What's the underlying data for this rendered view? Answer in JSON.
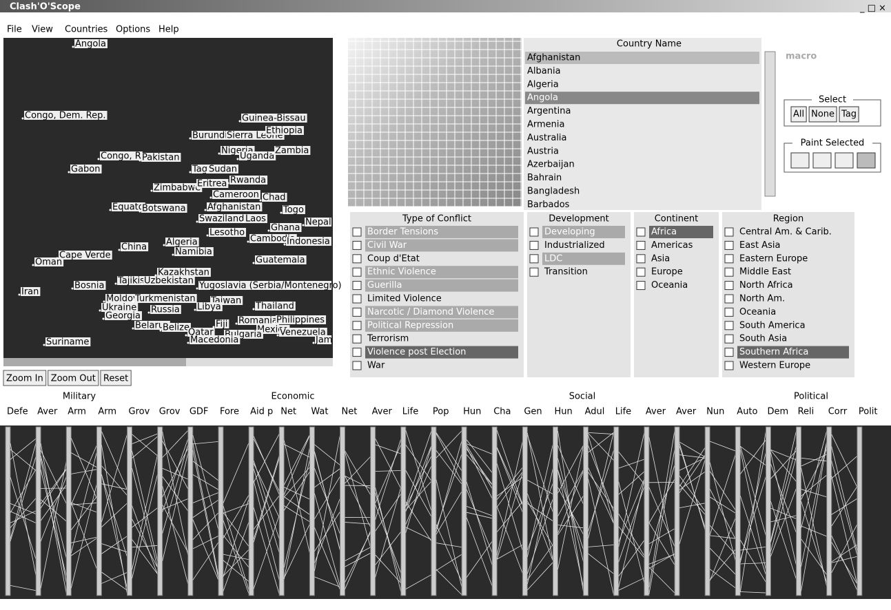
{
  "window": {
    "title": "Clash'O'Scope"
  },
  "menu": [
    "File",
    "View",
    "Countries",
    "Options",
    "Help"
  ],
  "map": {
    "labels": [
      "Angola",
      "Congo, Dem. Rep.",
      "Guinea-Bissau",
      "Burundi",
      "Sierra Leone",
      "Ethiopia",
      "Congo, R",
      "Pakistan",
      "Nigeria",
      "Uganda",
      "Zambia",
      "Gabon",
      "Tag",
      "Sudan",
      "Zimbabwe",
      "Eritrea",
      "Rwanda",
      "Cameroon",
      "Chad",
      "Equato",
      "Botswana",
      "Afghanistan",
      "Togo",
      "Swaziland",
      "Laos",
      "Ghana",
      "Nepal",
      "Lesotho",
      "Cambodia",
      "Indonesia",
      "China",
      "Algeria",
      "Namibia",
      "Oman",
      "Cape Verde",
      "Guatemala",
      "Kazakhstan",
      "Tajikistan",
      "Uzbekistan",
      "Bosnia",
      "Yugoslavia (Serbia/Montenegro)",
      "Iran",
      "Moldova",
      "Turkmenistan",
      "Taiwan",
      "Ukraine",
      "Russia",
      "Libya",
      "Thailand",
      "Georgia",
      "Romania",
      "Philippines",
      "Belarus",
      "Belize",
      "Qatar",
      "Fiji",
      "Mexico",
      "Venezuela",
      "Bulgaria",
      "Macedonia",
      "Suriname",
      "Jam"
    ]
  },
  "zoom": [
    "Zoom In",
    "Zoom Out",
    "Reset"
  ],
  "country_list": {
    "header": "Country Name",
    "items": [
      {
        "label": "Afghanistan",
        "highlight": "light"
      },
      {
        "label": "Albania"
      },
      {
        "label": "Algeria"
      },
      {
        "label": "Angola",
        "highlight": "dark"
      },
      {
        "label": "Argentina"
      },
      {
        "label": "Armenia"
      },
      {
        "label": "Australia"
      },
      {
        "label": "Austria"
      },
      {
        "label": "Azerbaijan"
      },
      {
        "label": "Bahrain"
      },
      {
        "label": "Bangladesh"
      },
      {
        "label": "Barbados"
      }
    ]
  },
  "macro": "macro",
  "select": {
    "title": "Select",
    "buttons": [
      "All",
      "None",
      "Tag"
    ]
  },
  "paint": {
    "title": "Paint Selected"
  },
  "facets": [
    {
      "title": "Type of Conflict",
      "items": [
        {
          "label": "Border Tensions",
          "highlight": "light"
        },
        {
          "label": "Civil War",
          "highlight": "light"
        },
        {
          "label": "Coup d'Etat"
        },
        {
          "label": "Ethnic Violence",
          "highlight": "light"
        },
        {
          "label": "Guerilla",
          "highlight": "light"
        },
        {
          "label": "Limited Violence"
        },
        {
          "label": "Narcotic / Diamond Violence",
          "highlight": "light"
        },
        {
          "label": "Political Repression",
          "highlight": "light"
        },
        {
          "label": "Terrorism"
        },
        {
          "label": "Violence post Election",
          "highlight": "dark"
        },
        {
          "label": "War"
        }
      ]
    },
    {
      "title": "Development",
      "items": [
        {
          "label": "Developing",
          "highlight": "light"
        },
        {
          "label": "Industrialized"
        },
        {
          "label": "LDC",
          "highlight": "light"
        },
        {
          "label": "Transition"
        }
      ]
    },
    {
      "title": "Continent",
      "items": [
        {
          "label": "Africa",
          "highlight": "dark"
        },
        {
          "label": "Americas"
        },
        {
          "label": "Asia"
        },
        {
          "label": "Europe"
        },
        {
          "label": "Oceania"
        }
      ]
    },
    {
      "title": "Region",
      "items": [
        {
          "label": "Central Am. & Carib."
        },
        {
          "label": "East Asia"
        },
        {
          "label": "Eastern Europe"
        },
        {
          "label": "Middle East"
        },
        {
          "label": "North Africa"
        },
        {
          "label": "North Am."
        },
        {
          "label": "Oceania"
        },
        {
          "label": "South America"
        },
        {
          "label": "South Asia"
        },
        {
          "label": "Southern Africa",
          "highlight": "dark"
        },
        {
          "label": "Western Europe"
        }
      ]
    }
  ],
  "parallel": {
    "groups": [
      "Military",
      "Economic",
      "Social",
      "Political"
    ],
    "axes": [
      "Defe",
      "Aver",
      "Arm",
      "Arm",
      "Grov",
      "Grov",
      "GDF",
      "Fore",
      "Aid p",
      "Net",
      "Wat",
      "Net",
      "Aver",
      "Life",
      "Pop",
      "Hun",
      "Cha",
      "Gen",
      "Hun",
      "Adul",
      "Life",
      "Aver",
      "Aver",
      "Nun",
      "Auto",
      "Dem",
      "Reli",
      "Corr",
      "Polit"
    ]
  }
}
